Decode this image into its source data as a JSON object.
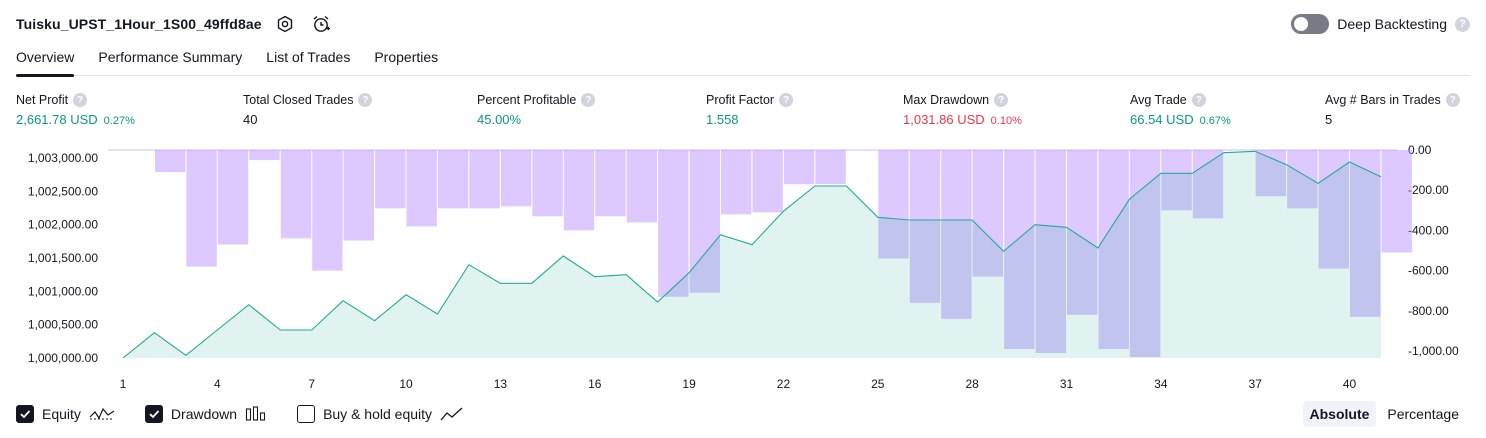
{
  "header": {
    "title": "Tuisku_UPST_1Hour_1S00_49ffd8ae",
    "settings_icon": "gear-icon",
    "alert_icon": "alarm-clock-icon"
  },
  "deep_backtesting": {
    "label": "Deep Backtesting",
    "enabled": false,
    "help": "?"
  },
  "tabs": [
    {
      "label": "Overview",
      "active": true
    },
    {
      "label": "Performance Summary",
      "active": false
    },
    {
      "label": "List of Trades",
      "active": false
    },
    {
      "label": "Properties",
      "active": false
    }
  ],
  "stats": [
    {
      "label": "Net Profit",
      "value": "2,661.78 USD",
      "pct": "0.27%",
      "color": "#089981"
    },
    {
      "label": "Total Closed Trades",
      "value": "40",
      "pct": "",
      "color": "#131722"
    },
    {
      "label": "Percent Profitable",
      "value": "45.00%",
      "pct": "",
      "color": "#089981"
    },
    {
      "label": "Profit Factor",
      "value": "1.558",
      "pct": "",
      "color": "#089981"
    },
    {
      "label": "Max Drawdown",
      "value": "1,031.86 USD",
      "pct": "0.10%",
      "color": "#f23645"
    },
    {
      "label": "Avg Trade",
      "value": "66.54 USD",
      "pct": "0.67%",
      "color": "#089981"
    },
    {
      "label": "Avg # Bars in Trades",
      "value": "5",
      "pct": "",
      "color": "#131722"
    }
  ],
  "chart_data": {
    "type": "area",
    "x": [
      1,
      2,
      3,
      4,
      5,
      6,
      7,
      8,
      9,
      10,
      11,
      12,
      13,
      14,
      15,
      16,
      17,
      18,
      19,
      20,
      21,
      22,
      23,
      24,
      25,
      26,
      27,
      28,
      29,
      30,
      31,
      32,
      33,
      34,
      35,
      36,
      37,
      38,
      39,
      40,
      41
    ],
    "xticks": [
      "1",
      "4",
      "7",
      "10",
      "13",
      "16",
      "19",
      "22",
      "25",
      "28",
      "31",
      "34",
      "37",
      "40"
    ],
    "xtick_values": [
      1,
      4,
      7,
      10,
      13,
      16,
      19,
      22,
      25,
      28,
      31,
      34,
      37,
      40
    ],
    "series": [
      {
        "axis": "left",
        "style": "area",
        "values": [
          1000000,
          1000380,
          1000040,
          1000420,
          1000800,
          1000420,
          1000420,
          1000860,
          1000560,
          1000950,
          1000660,
          1001400,
          1001120,
          1001120,
          1001530,
          1001220,
          1001250,
          1000840,
          1001280,
          1001850,
          1001700,
          1002200,
          1002580,
          1002580,
          1002110,
          1002070,
          1002070,
          1002070,
          1001600,
          1002000,
          1001960,
          1001650,
          1002380,
          1002770,
          1002770,
          1003080,
          1003100,
          1002900,
          1002620,
          1002940,
          1002720
        ]
      },
      {
        "axis": "right",
        "style": "bar",
        "values": [
          0,
          -110,
          -580,
          -470,
          -50,
          -440,
          -600,
          -450,
          -290,
          -380,
          -290,
          -290,
          -280,
          -330,
          -400,
          -330,
          -360,
          -730,
          -710,
          -320,
          -310,
          -170,
          -170,
          0,
          -540,
          -760,
          -840,
          -630,
          -990,
          -1010,
          -820,
          -990,
          -1030,
          -300,
          -340,
          0,
          -230,
          -290,
          -590,
          -830,
          -510
        ]
      }
    ],
    "left_axis": {
      "ticks": [
        "1,003,000.00",
        "1,002,500.00",
        "1,002,000.00",
        "1,001,500.00",
        "1,001,000.00",
        "1,000,500.00",
        "1,000,000.00"
      ],
      "tick_values": [
        1003000,
        1002500,
        1002000,
        1001500,
        1001000,
        1000500,
        1000000
      ]
    },
    "right_axis": {
      "ticks": [
        "0.00",
        "-200.00",
        "-400.00",
        "-600.00",
        "-800.00",
        "-1,000.00"
      ],
      "tick_values": [
        0,
        -200,
        -400,
        -600,
        -800,
        -1000
      ]
    },
    "colors": {
      "equity_line": "#22ab94",
      "equity_fill": "#22ab94",
      "drawdown": "#b388ff"
    }
  },
  "legend": [
    {
      "label": "Equity",
      "checked": true,
      "icon": "equity-line-icon"
    },
    {
      "label": "Drawdown",
      "checked": true,
      "icon": "bars-icon"
    },
    {
      "label": "Buy & hold equity",
      "checked": false,
      "icon": "buy-hold-line-icon"
    }
  ],
  "view_mode": {
    "absolute": "Absolute",
    "percentage": "Percentage",
    "selected": "Absolute"
  }
}
